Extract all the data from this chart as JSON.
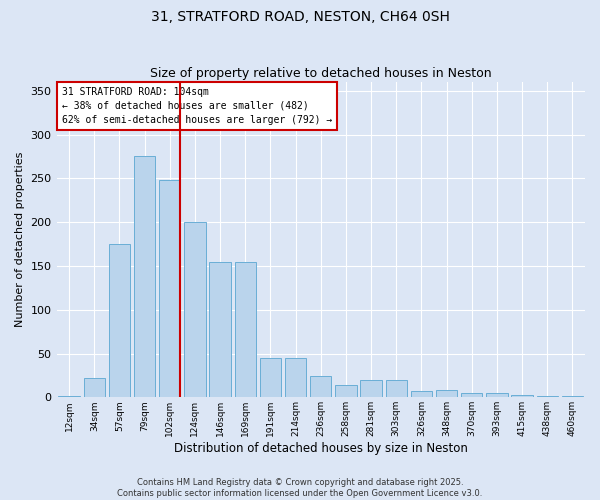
{
  "title1": "31, STRATFORD ROAD, NESTON, CH64 0SH",
  "title2": "Size of property relative to detached houses in Neston",
  "xlabel": "Distribution of detached houses by size in Neston",
  "ylabel": "Number of detached properties",
  "categories": [
    "12sqm",
    "34sqm",
    "57sqm",
    "79sqm",
    "102sqm",
    "124sqm",
    "146sqm",
    "169sqm",
    "191sqm",
    "214sqm",
    "236sqm",
    "258sqm",
    "281sqm",
    "303sqm",
    "326sqm",
    "348sqm",
    "370sqm",
    "393sqm",
    "415sqm",
    "438sqm",
    "460sqm"
  ],
  "bar_values": [
    1,
    22,
    175,
    275,
    248,
    200,
    155,
    155,
    45,
    45,
    24,
    14,
    20,
    20,
    7,
    8,
    5,
    5,
    3,
    2,
    1
  ],
  "bar_color": "#bad4ec",
  "bar_edge_color": "#6aaed6",
  "bg_color": "#dce6f5",
  "grid_color": "#ffffff",
  "vline_x_idx": 4,
  "vline_color": "#cc0000",
  "annotation_text": "31 STRATFORD ROAD: 104sqm\n← 38% of detached houses are smaller (482)\n62% of semi-detached houses are larger (792) →",
  "annotation_box_color": "#ffffff",
  "annotation_box_edge": "#cc0000",
  "footer1": "Contains HM Land Registry data © Crown copyright and database right 2025.",
  "footer2": "Contains public sector information licensed under the Open Government Licence v3.0.",
  "ylim": [
    0,
    360
  ],
  "yticks": [
    0,
    50,
    100,
    150,
    200,
    250,
    300,
    350
  ],
  "fig_width": 6.0,
  "fig_height": 5.0,
  "bg_fig_color": "#dce6f5"
}
